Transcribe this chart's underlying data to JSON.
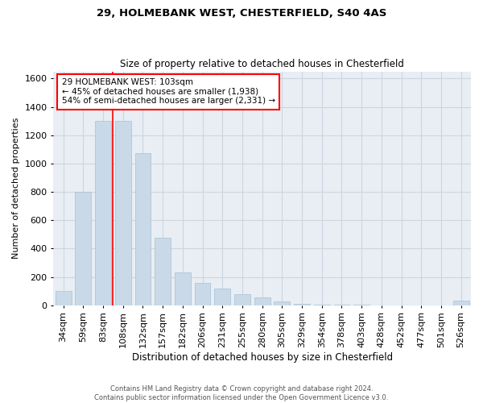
{
  "title_line1": "29, HOLMEBANK WEST, CHESTERFIELD, S40 4AS",
  "title_line2": "Size of property relative to detached houses in Chesterfield",
  "xlabel": "Distribution of detached houses by size in Chesterfield",
  "ylabel": "Number of detached properties",
  "footer_line1": "Contains HM Land Registry data © Crown copyright and database right 2024.",
  "footer_line2": "Contains public sector information licensed under the Open Government Licence v3.0.",
  "categories": [
    "34sqm",
    "59sqm",
    "83sqm",
    "108sqm",
    "132sqm",
    "157sqm",
    "182sqm",
    "206sqm",
    "231sqm",
    "255sqm",
    "280sqm",
    "305sqm",
    "329sqm",
    "354sqm",
    "378sqm",
    "403sqm",
    "428sqm",
    "452sqm",
    "477sqm",
    "501sqm",
    "526sqm"
  ],
  "values": [
    100,
    800,
    1300,
    1300,
    1075,
    475,
    230,
    155,
    115,
    80,
    55,
    25,
    10,
    5,
    5,
    2,
    1,
    1,
    1,
    1,
    30
  ],
  "bar_color": "#c9d9e8",
  "bar_edge_color": "#a8c0d4",
  "grid_color": "#ccd6e0",
  "background_color": "#e8eef4",
  "vline_x_index": 2,
  "vline_color": "red",
  "annotation_text": "29 HOLMEBANK WEST: 103sqm\n← 45% of detached houses are smaller (1,938)\n54% of semi-detached houses are larger (2,331) →",
  "annotation_box_color": "white",
  "annotation_box_edgecolor": "red",
  "ylim": [
    0,
    1650
  ],
  "yticks": [
    0,
    200,
    400,
    600,
    800,
    1000,
    1200,
    1400,
    1600
  ]
}
